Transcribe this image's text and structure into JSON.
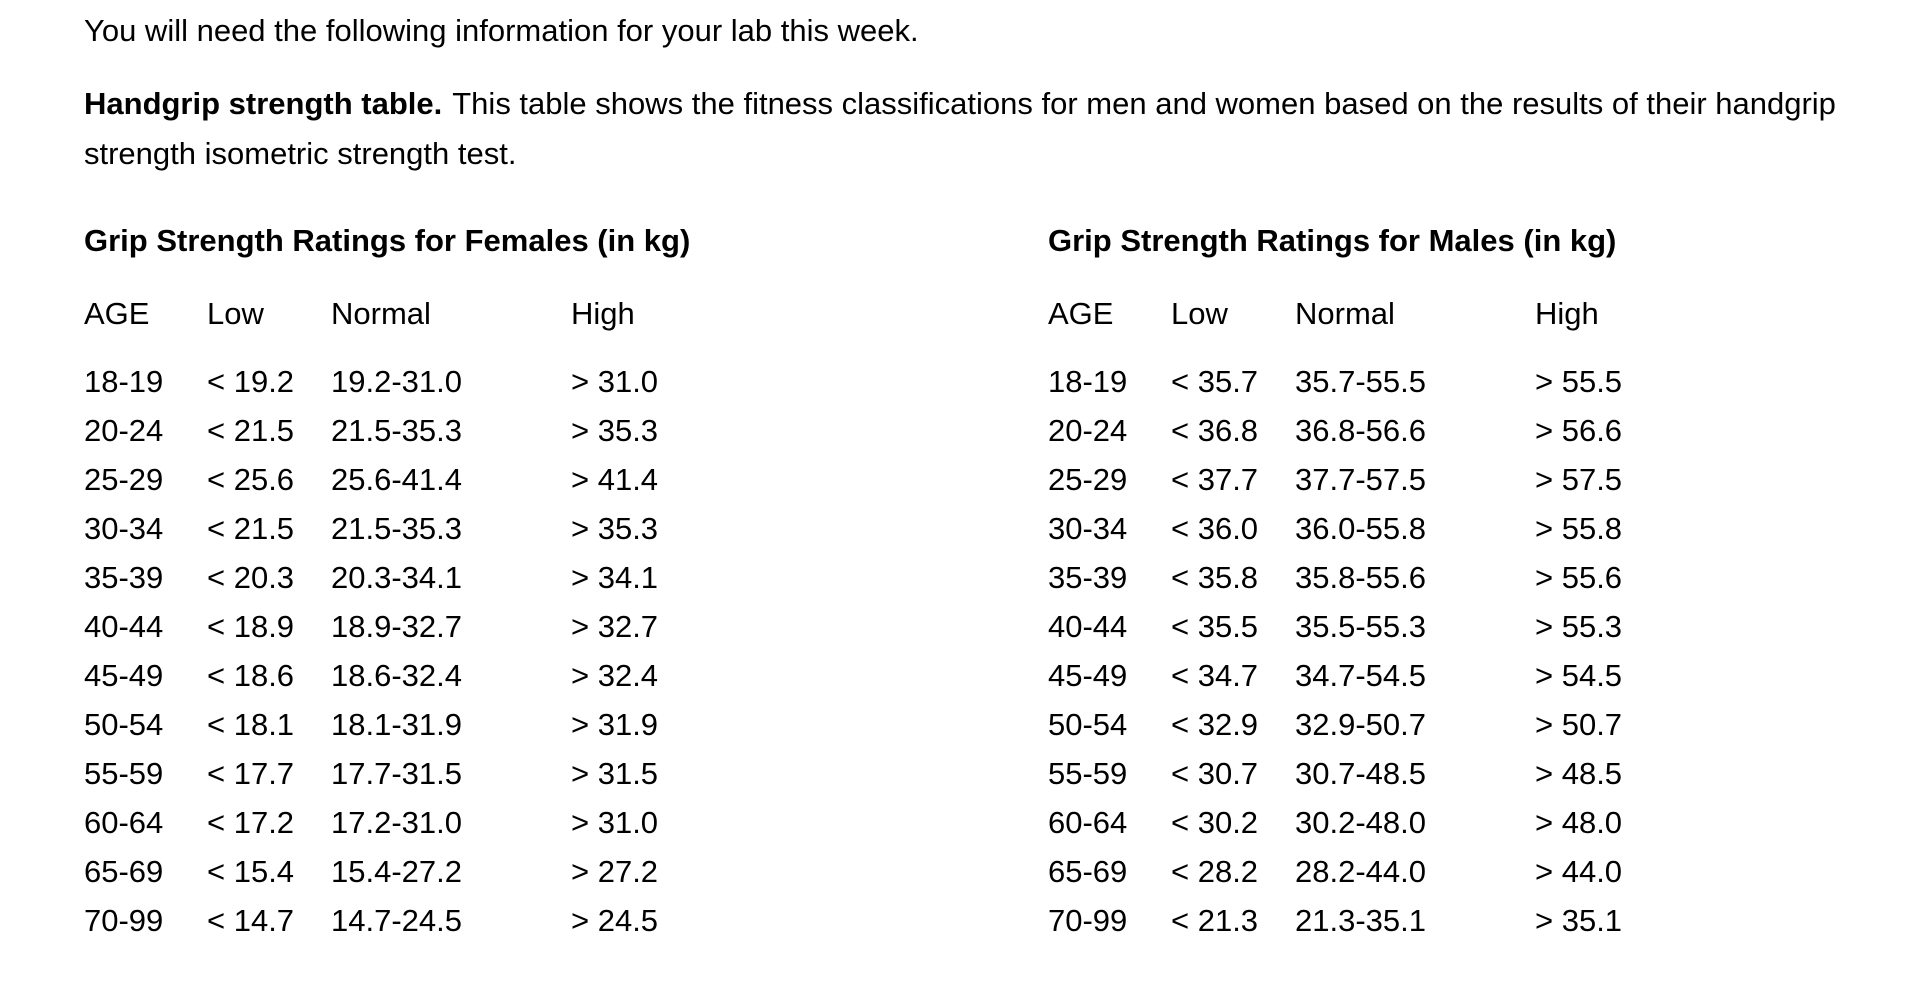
{
  "page": {
    "intro": "You will need the following information for your lab this week.",
    "description_lead": "Handgrip strength table.",
    "description_body": "This table shows the fitness classifications for men and women based on the results of their handgrip strength isometric strength test."
  },
  "tables": [
    {
      "title": "Grip Strength Ratings for Females (in kg)",
      "headers": [
        "AGE",
        "Low",
        "Normal",
        "High"
      ],
      "rows": [
        [
          "18-19",
          "< 19.2",
          "19.2-31.0",
          "> 31.0"
        ],
        [
          "20-24",
          "< 21.5",
          "21.5-35.3",
          "> 35.3"
        ],
        [
          "25-29",
          "< 25.6",
          "25.6-41.4",
          "> 41.4"
        ],
        [
          "30-34",
          "< 21.5",
          "21.5-35.3",
          "> 35.3"
        ],
        [
          "35-39",
          "< 20.3",
          "20.3-34.1",
          "> 34.1"
        ],
        [
          "40-44",
          "< 18.9",
          "18.9-32.7",
          "> 32.7"
        ],
        [
          "45-49",
          "< 18.6",
          "18.6-32.4",
          "> 32.4"
        ],
        [
          "50-54",
          "< 18.1",
          "18.1-31.9",
          "> 31.9"
        ],
        [
          "55-59",
          "< 17.7",
          "17.7-31.5",
          "> 31.5"
        ],
        [
          "60-64",
          "< 17.2",
          "17.2-31.0",
          "> 31.0"
        ],
        [
          "65-69",
          "< 15.4",
          "15.4-27.2",
          "> 27.2"
        ],
        [
          "70-99",
          "< 14.7",
          "14.7-24.5",
          "> 24.5"
        ]
      ]
    },
    {
      "title": "Grip Strength Ratings for Males (in kg)",
      "headers": [
        "AGE",
        "Low",
        "Normal",
        "High"
      ],
      "rows": [
        [
          "18-19",
          "< 35.7",
          "35.7-55.5",
          "> 55.5"
        ],
        [
          "20-24",
          "< 36.8",
          "36.8-56.6",
          "> 56.6"
        ],
        [
          "25-29",
          "< 37.7",
          "37.7-57.5",
          "> 57.5"
        ],
        [
          "30-34",
          "< 36.0",
          "36.0-55.8",
          "> 55.8"
        ],
        [
          "35-39",
          "< 35.8",
          "35.8-55.6",
          "> 55.6"
        ],
        [
          "40-44",
          "< 35.5",
          "35.5-55.3",
          "> 55.3"
        ],
        [
          "45-49",
          "< 34.7",
          "34.7-54.5",
          "> 54.5"
        ],
        [
          "50-54",
          "< 32.9",
          "32.9-50.7",
          "> 50.7"
        ],
        [
          "55-59",
          "< 30.7",
          "30.7-48.5",
          "> 48.5"
        ],
        [
          "60-64",
          "< 30.2",
          "30.2-48.0",
          "> 48.0"
        ],
        [
          "65-69",
          "< 28.2",
          "28.2-44.0",
          "> 44.0"
        ],
        [
          "70-99",
          "< 21.3",
          "21.3-35.1",
          "> 35.1"
        ]
      ]
    }
  ],
  "colors": {
    "text": "#000000",
    "background": "#ffffff"
  }
}
